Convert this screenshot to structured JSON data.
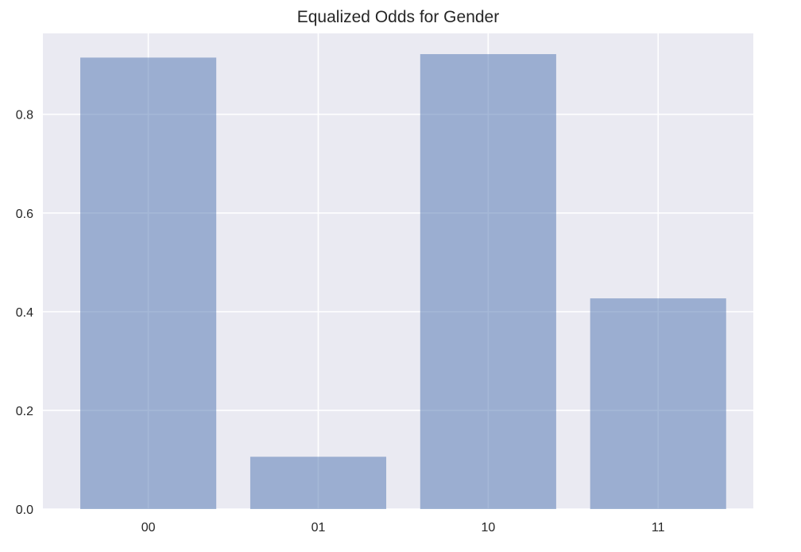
{
  "chart_data": {
    "type": "bar",
    "title": "Equalized Odds for Gender",
    "xlabel": "",
    "ylabel": "",
    "categories": [
      "00",
      "01",
      "10",
      "11"
    ],
    "values": [
      0.915,
      0.106,
      0.922,
      0.427
    ],
    "ylim": [
      0,
      0.964
    ],
    "yticks": [
      0.0,
      0.2,
      0.4,
      0.6,
      0.8
    ],
    "ytick_labels": [
      "0.0",
      "0.2",
      "0.4",
      "0.6",
      "0.8"
    ],
    "grid": true,
    "legend": "none",
    "colors": {
      "bar": "#4c72b0",
      "bar_opacity": 0.5,
      "plot_background": "#eaeaf2",
      "grid": "#ffffff",
      "text": "#262626"
    }
  }
}
